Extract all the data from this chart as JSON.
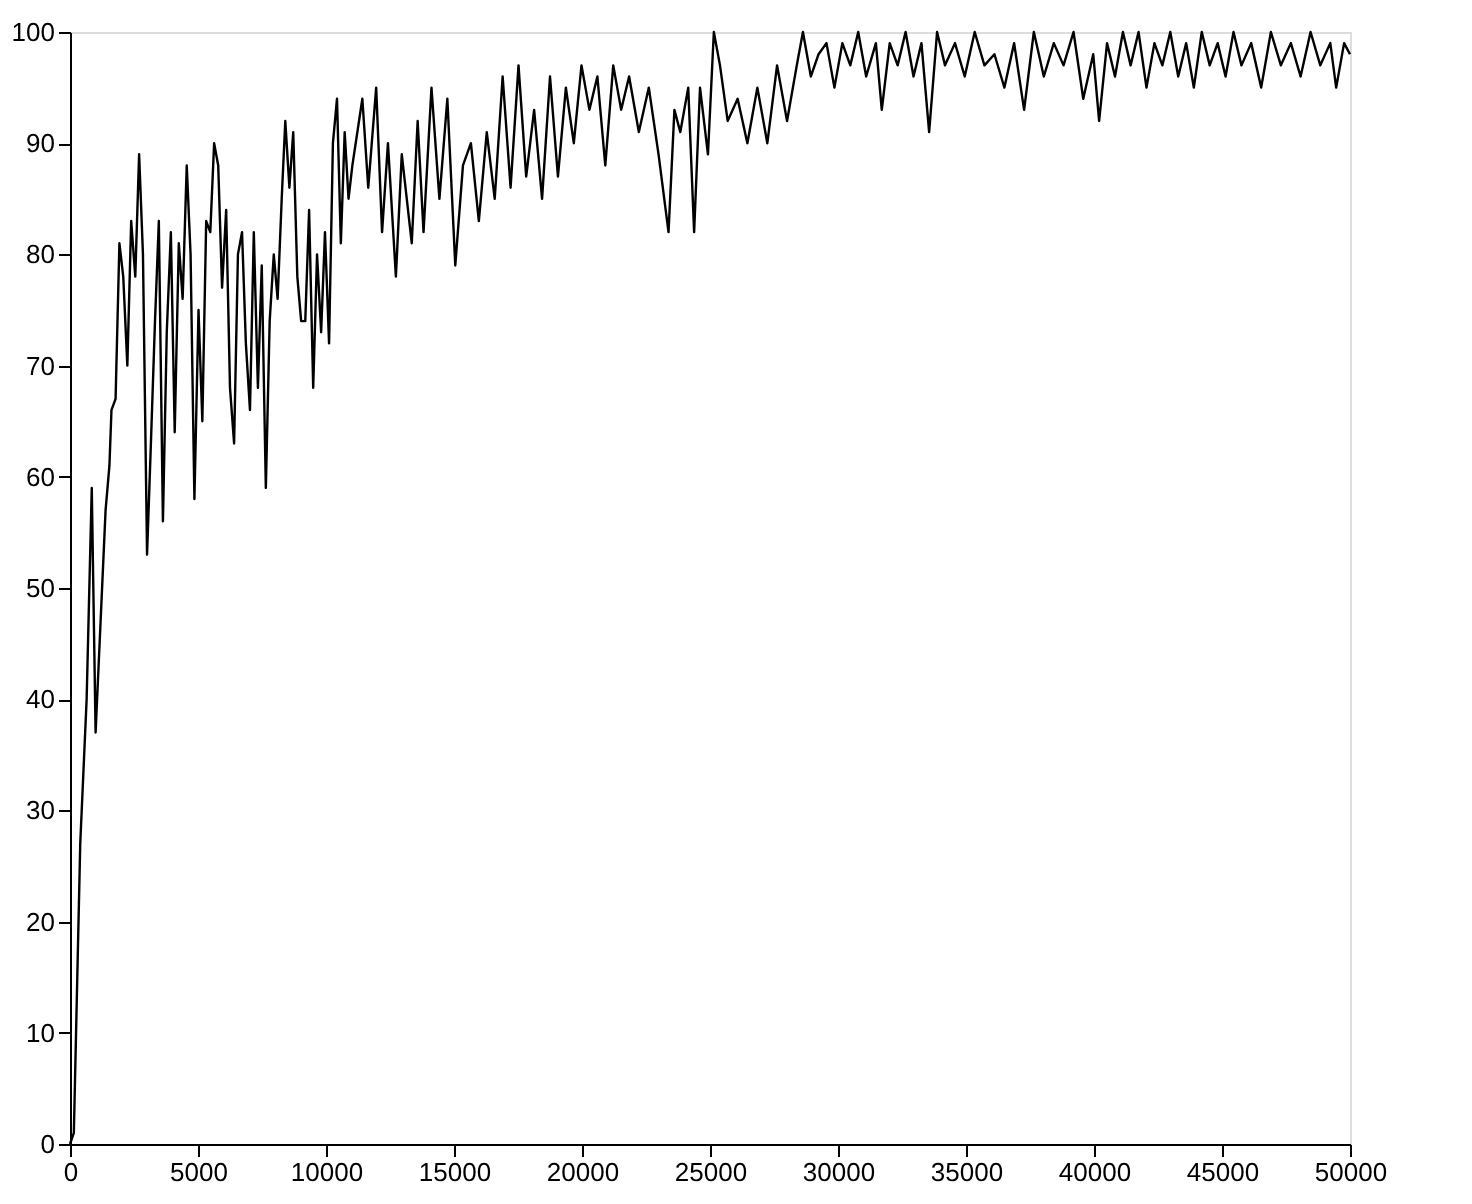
{
  "chart_data": {
    "type": "line",
    "grid": false,
    "marker": "none",
    "line_style": "solid",
    "xlim": [
      0,
      50000
    ],
    "xticks": [
      0,
      5000,
      10000,
      15000,
      20000,
      25000,
      30000,
      35000,
      40000,
      45000,
      50000
    ],
    "ylim": [
      0,
      100
    ],
    "yticks": [
      0,
      10,
      20,
      30,
      40,
      50,
      60,
      70,
      80,
      90,
      100
    ],
    "x": [
      0,
      150,
      400,
      650,
      850,
      1000,
      1390,
      1540,
      1620,
      1780,
      1930,
      2080,
      2240,
      2390,
      2550,
      2700,
      2850,
      3010,
      3160,
      3320,
      3470,
      3630,
      3780,
      3940,
      4090,
      4250,
      4400,
      4560,
      4710,
      4860,
      5020,
      5170,
      5320,
      5480,
      5630,
      5790,
      5940,
      6100,
      6250,
      6410,
      6560,
      6720,
      6870,
      7030,
      7180,
      7340,
      7490,
      7650,
      7800,
      7960,
      8110,
      8270,
      8410,
      8570,
      8720,
      8880,
      9030,
      9190,
      9340,
      9500,
      9650,
      9810,
      9960,
      10120,
      10270,
      10430,
      10580,
      10730,
      10880,
      11030,
      11420,
      11650,
      11960,
      12190,
      12420,
      12730,
      12960,
      13350,
      13580,
      13810,
      14120,
      14430,
      14740,
      15050,
      15350,
      15660,
      15970,
      16280,
      16590,
      16900,
      17210,
      17520,
      17820,
      18130,
      18440,
      18750,
      19060,
      19370,
      19680,
      19980,
      20290,
      20600,
      20910,
      21220,
      21530,
      21840,
      22220,
      22610,
      22990,
      23380,
      23610,
      23840,
      24150,
      24380,
      24610,
      24920,
      25150,
      25390,
      25690,
      26080,
      26460,
      26850,
      27240,
      27620,
      28010,
      28390,
      28630,
      28940,
      29240,
      29550,
      29860,
      30170,
      30480,
      30790,
      31100,
      31480,
      31710,
      32020,
      32330,
      32640,
      32950,
      33260,
      33560,
      33870,
      34180,
      34570,
      34950,
      35340,
      35720,
      36110,
      36500,
      36880,
      37270,
      37650,
      38040,
      38430,
      38810,
      39200,
      39580,
      39970,
      40200,
      40510,
      40820,
      41130,
      41430,
      41740,
      42050,
      42360,
      42670,
      42980,
      43290,
      43600,
      43900,
      44210,
      44520,
      44830,
      45140,
      45450,
      45760,
      46140,
      46530,
      46910,
      47300,
      47690,
      48070,
      48460,
      48840,
      49230,
      49460,
      49770,
      50000
    ],
    "series": [
      {
        "color": "#000000",
        "values": [
          0,
          1,
          27,
          40,
          59,
          37,
          57,
          61,
          66,
          67,
          81,
          78,
          70,
          83,
          78,
          89,
          80,
          53,
          63,
          74,
          83,
          56,
          73,
          82,
          64,
          81,
          76,
          88,
          80,
          58,
          75,
          65,
          83,
          82,
          90,
          88,
          77,
          84,
          68,
          63,
          80,
          82,
          72,
          66,
          82,
          68,
          79,
          59,
          74,
          80,
          76,
          85,
          92,
          86,
          91,
          78,
          74,
          74,
          84,
          68,
          80,
          73,
          82,
          72,
          90,
          94,
          81,
          91,
          85,
          88,
          94,
          86,
          95,
          82,
          90,
          78,
          89,
          81,
          92,
          82,
          95,
          85,
          94,
          79,
          88,
          90,
          83,
          91,
          85,
          96,
          86,
          97,
          87,
          93,
          85,
          96,
          87,
          95,
          90,
          97,
          93,
          96,
          88,
          97,
          93,
          96,
          91,
          95,
          89,
          82,
          93,
          91,
          95,
          82,
          95,
          89,
          100,
          97,
          92,
          94,
          90,
          95,
          90,
          97,
          92,
          97,
          100,
          96,
          98,
          99,
          95,
          99,
          97,
          100,
          96,
          99,
          93,
          99,
          97,
          100,
          96,
          99,
          91,
          100,
          97,
          99,
          96,
          100,
          97,
          98,
          95,
          99,
          93,
          100,
          96,
          99,
          97,
          100,
          94,
          98,
          92,
          99,
          96,
          100,
          97,
          100,
          95,
          99,
          97,
          100,
          96,
          99,
          95,
          100,
          97,
          99,
          96,
          100,
          97,
          99,
          95,
          100,
          97,
          99,
          96,
          100,
          97,
          99,
          95,
          99,
          98
        ]
      }
    ]
  }
}
